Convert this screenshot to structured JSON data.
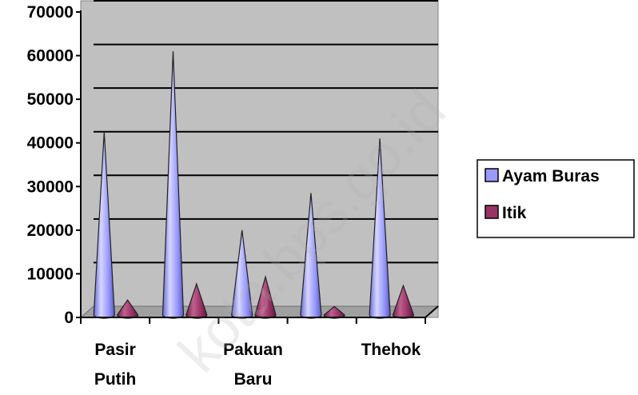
{
  "chart_data": {
    "type": "bar",
    "style": "3d-cone",
    "categories": [
      "Pasir Putih",
      "",
      "Pakuan Baru",
      "",
      "Thehok"
    ],
    "category_labels": [
      [
        "Pasir",
        "Putih"
      ],
      [],
      [
        "Pakuan",
        "Baru"
      ],
      [],
      [
        "Thehok"
      ]
    ],
    "series": [
      {
        "name": "Ayam Buras",
        "values": [
          42500,
          61000,
          20000,
          28500,
          41000
        ],
        "color": "#9999ff"
      },
      {
        "name": "Itik",
        "values": [
          4000,
          7700,
          9300,
          2500,
          7300
        ],
        "color": "#993366"
      }
    ],
    "ylim": [
      0,
      70000
    ],
    "yticks": [
      "0",
      "10000",
      "20000",
      "30000",
      "40000",
      "50000",
      "60000",
      "70000"
    ],
    "grid": true,
    "plot_background": "#c0c0c0",
    "legend_position": "right",
    "watermark": "kota.bps.go.id"
  }
}
